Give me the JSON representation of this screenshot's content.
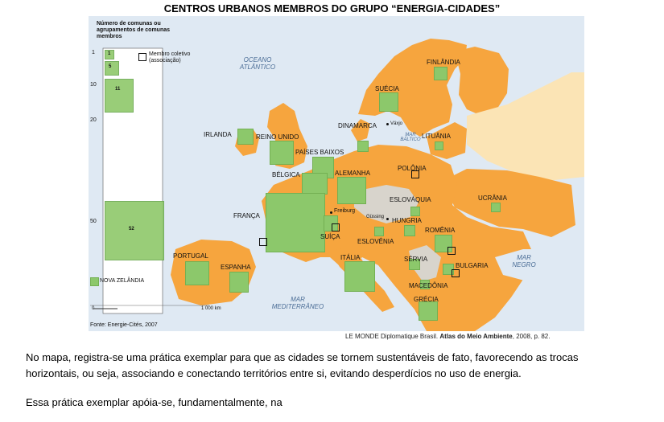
{
  "title": "CENTROS URBANOS MEMBROS DO GRUPO “ENERGIA-CIDADES”",
  "legend": {
    "heading": "Número de comunas ou agrupamentos de comunas membros",
    "scale_values": [
      "1",
      "5",
      "11",
      "52"
    ],
    "scale_ticks": [
      "1",
      "10",
      "20",
      "50"
    ],
    "collective_member": "Membro coletivo (associação)",
    "nz": "NOVA ZELÂNDIA",
    "scale_bar": "1 000 km",
    "scale_zero": "0",
    "source": "Fonte: Energie-Cités, 2007"
  },
  "seas": {
    "atlantic": "OCEANO ATLÂNTICO",
    "baltic": "MAR BÁLTICO",
    "black": "MAR NEGRO",
    "mediterranean": "MAR MEDITERRÂNEO"
  },
  "countries": {
    "finland": "FINLÂNDIA",
    "sweden": "SUÉCIA",
    "denmark": "DINAMARCA",
    "lithuania": "LITUÂNIA",
    "ireland": "IRLANDA",
    "uk": "REINO UNIDO",
    "netherlands": "PAÍSES BAIXOS",
    "belgium": "BÉLGICA",
    "germany": "ALEMANHA",
    "poland": "POLÔNIA",
    "slovakia": "ESLOVÁQUIA",
    "ukraine": "UCRÂNIA",
    "france": "FRANÇA",
    "hungary": "HUNGRIA",
    "switzerland": "SUÍÇA",
    "slovenia": "ESLOVÊNIA",
    "romania": "ROMÊNIA",
    "portugal": "PORTUGAL",
    "spain": "ESPANHA",
    "italy": "ITÁLIA",
    "serbia": "SÉRVIA",
    "bulgaria": "BULGARIA",
    "macedonia": "MACEDÔNIA",
    "greece": "GRÉCIA"
  },
  "cities": {
    "vaxjo": "Växjo",
    "freiburg": "Freiburg",
    "gussing": "Güssing"
  },
  "credit": {
    "prefix": "LE MONDE Diplomatique Brasil. ",
    "book": "Atlas do Meio Ambiente",
    "suffix": ", 2008, p. 82."
  },
  "text": {
    "line1": "No mapa, registra-se uma prática exemplar para que as cidades se tornem sustentáveis de fato, favorecendo as trocas",
    "line2": "horizontais, ou seja, associando e conectando territórios entre si, evitando desperdícios no uso de energia.",
    "line3": "Essa prática exemplar apóia-se, fundamentalmente, na"
  }
}
